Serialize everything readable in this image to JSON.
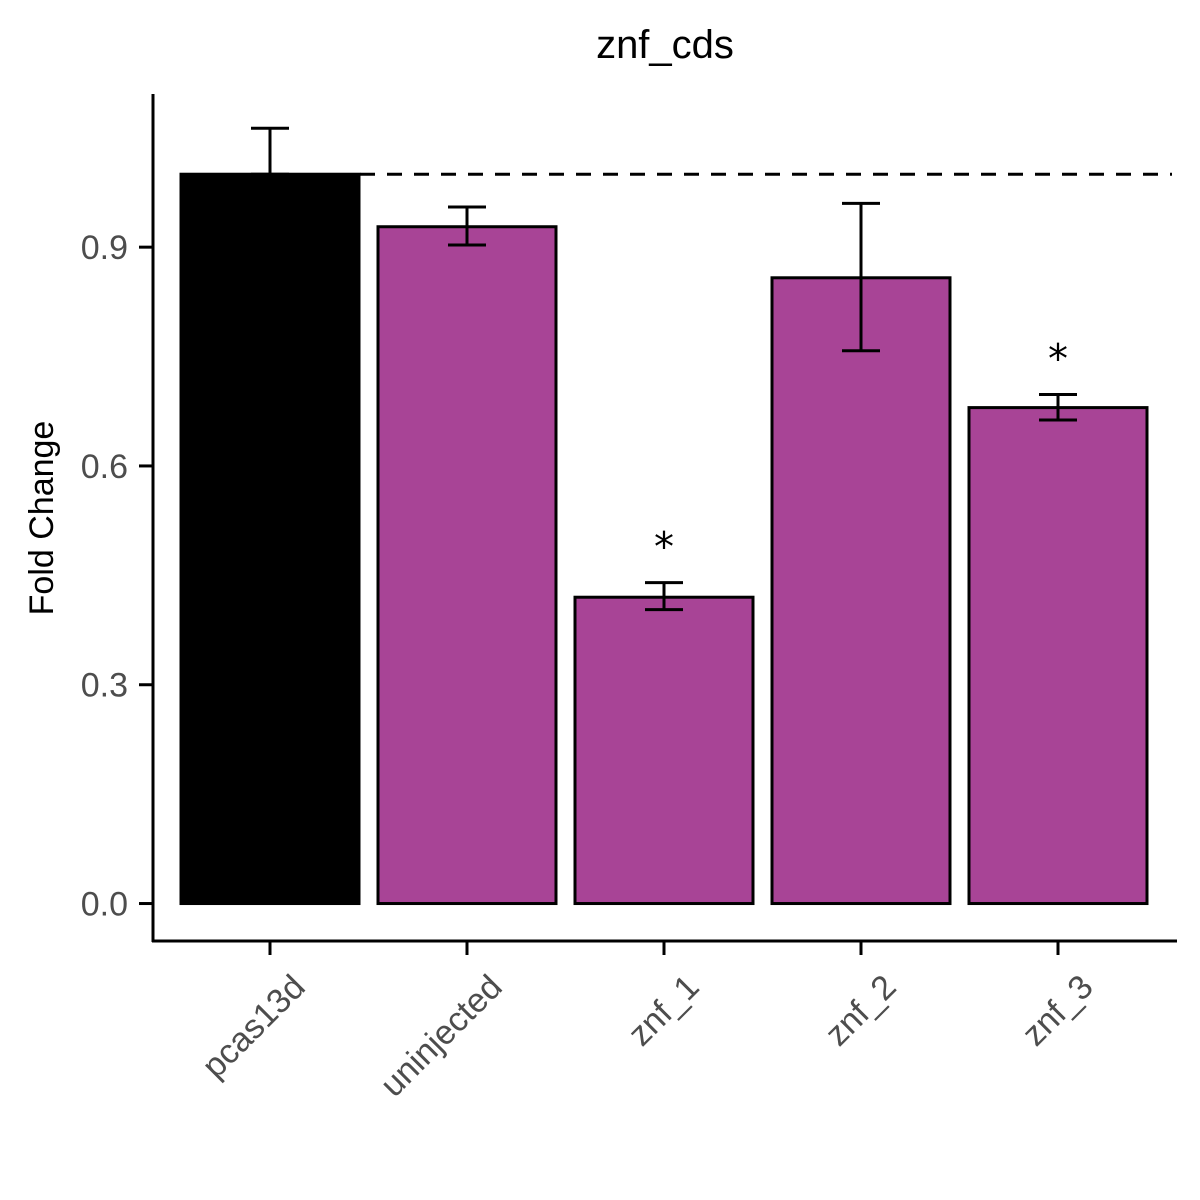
{
  "chart_data": {
    "type": "bar",
    "title": "znf_cds",
    "xlabel": "",
    "ylabel": "Fold Change",
    "categories": [
      "pcas13d",
      "uninjected",
      "znf_1",
      "znf_2",
      "znf_3"
    ],
    "values": [
      1.0,
      0.928,
      0.42,
      0.858,
      0.68
    ],
    "error_upper": [
      1.063,
      0.955,
      0.44,
      0.96,
      0.698
    ],
    "error_lower": [
      1.0,
      0.903,
      0.403,
      0.758,
      0.663
    ],
    "significance": [
      "",
      "",
      "*",
      "",
      "*"
    ],
    "bar_colors": [
      "#000000",
      "#a84496",
      "#a84496",
      "#a84496",
      "#a84496"
    ],
    "reference_line": 1.0,
    "yticks": [
      0.0,
      0.3,
      0.6,
      0.9
    ],
    "ytick_labels": [
      "0.0",
      "0.3",
      "0.6",
      "0.9"
    ],
    "ylim": [
      -0.05,
      1.11
    ],
    "grid": false,
    "legend": "none"
  }
}
